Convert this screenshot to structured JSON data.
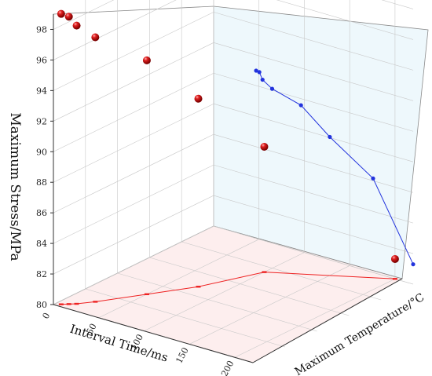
{
  "chart_data": {
    "type": "scatter3d",
    "title": "",
    "axes": {
      "stress": {
        "label": "Maximum Stress/MPa",
        "ticks": [
          80,
          82,
          84,
          86,
          88,
          90,
          92,
          94,
          96,
          98
        ],
        "range": [
          80,
          99
        ]
      },
      "interval": {
        "label": "Interval Time/ms",
        "ticks": [
          0,
          50,
          100,
          150,
          200
        ],
        "range": [
          0,
          220
        ]
      },
      "temperature": {
        "label": "Maximum Temperature/°C",
        "ticks": [
          "",
          "",
          "",
          "",
          ""
        ],
        "range": [
          0,
          1
        ]
      }
    },
    "points": [
      {
        "interval": 5,
        "temperature": 0.02,
        "stress": 99.0
      },
      {
        "interval": 10,
        "temperature": 0.04,
        "stress": 98.8
      },
      {
        "interval": 15,
        "temperature": 0.06,
        "stress": 98.2
      },
      {
        "interval": 25,
        "temperature": 0.12,
        "stress": 97.3
      },
      {
        "interval": 50,
        "temperature": 0.3,
        "stress": 95.3
      },
      {
        "interval": 75,
        "temperature": 0.48,
        "stress": 92.3
      },
      {
        "interval": 100,
        "temperature": 0.75,
        "stress": 88.2
      },
      {
        "interval": 200,
        "temperature": 1.0,
        "stress": 81.3
      }
    ],
    "projections": {
      "stress_temperature_plane": "blue",
      "interval_temperature_plane": "red"
    },
    "colors": {
      "points": "#cc1a1a",
      "projection_blue": "#2233dd",
      "projection_red": "#ee2222",
      "back_plane": "#eef8fc",
      "floor_plane": "#fdeeee",
      "grid": "#c8c8c8"
    },
    "grid": true,
    "legend": "none"
  }
}
